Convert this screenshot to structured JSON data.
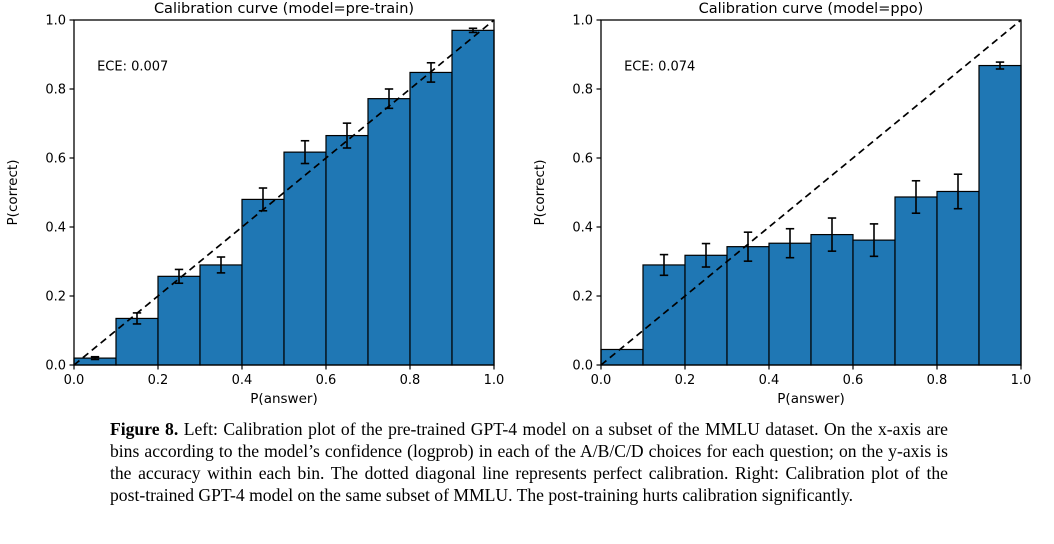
{
  "figure": {
    "caption_label": "Figure 8.",
    "caption_text": "Left: Calibration plot of the pre-trained GPT-4 model on a subset of the MMLU dataset. On the x-axis are bins according to the model’s confidence (logprob) in each of the A/B/C/D choices for each question; on the y-axis is the accuracy within each bin. The dotted diagonal line represents perfect calibration. Right: Calibration plot of the post-trained GPT-4 model on the same subset of MMLU. The post-training hurts calibration significantly."
  },
  "colors": {
    "bar_fill": "#1f77b4",
    "bar_edge": "#000000",
    "diagonal": "#000000",
    "axis": "#000000",
    "text": "#000000",
    "background": "#ffffff"
  },
  "chart_data": [
    {
      "id": "pretrain",
      "type": "bar",
      "title": "Calibration curve (model=pre-train)",
      "annotation": "ECE: 0.007",
      "xlabel": "P(answer)",
      "ylabel": "P(correct)",
      "xlim": [
        0.0,
        1.0
      ],
      "ylim": [
        0.0,
        1.0
      ],
      "xticks": [
        "0.0",
        "0.2",
        "0.4",
        "0.6",
        "0.8",
        "1.0"
      ],
      "yticks": [
        "0.0",
        "0.2",
        "0.4",
        "0.6",
        "0.8",
        "1.0"
      ],
      "bin_edges": [
        0.0,
        0.1,
        0.2,
        0.3,
        0.4,
        0.5,
        0.6,
        0.7,
        0.8,
        0.9,
        1.0
      ],
      "values": [
        0.02,
        0.135,
        0.257,
        0.29,
        0.48,
        0.617,
        0.665,
        0.772,
        0.848,
        0.97
      ],
      "errors": [
        0.004,
        0.016,
        0.02,
        0.023,
        0.033,
        0.033,
        0.036,
        0.028,
        0.028,
        0.006
      ],
      "diagonal": true,
      "grid": false,
      "legend": null
    },
    {
      "id": "ppo",
      "type": "bar",
      "title": "Calibration curve (model=ppo)",
      "annotation": "ECE: 0.074",
      "xlabel": "P(answer)",
      "ylabel": "P(correct)",
      "xlim": [
        0.0,
        1.0
      ],
      "ylim": [
        0.0,
        1.0
      ],
      "xticks": [
        "0.0",
        "0.2",
        "0.4",
        "0.6",
        "0.8",
        "1.0"
      ],
      "yticks": [
        "0.0",
        "0.2",
        "0.4",
        "0.6",
        "0.8",
        "1.0"
      ],
      "bin_edges": [
        0.0,
        0.1,
        0.2,
        0.3,
        0.4,
        0.5,
        0.6,
        0.7,
        0.8,
        0.9,
        1.0
      ],
      "values": [
        0.045,
        0.29,
        0.318,
        0.343,
        0.353,
        0.378,
        0.362,
        0.487,
        0.503,
        0.868
      ],
      "errors": [
        0.0,
        0.03,
        0.034,
        0.042,
        0.042,
        0.048,
        0.047,
        0.047,
        0.05,
        0.01
      ],
      "diagonal": true,
      "grid": false,
      "legend": null
    }
  ]
}
